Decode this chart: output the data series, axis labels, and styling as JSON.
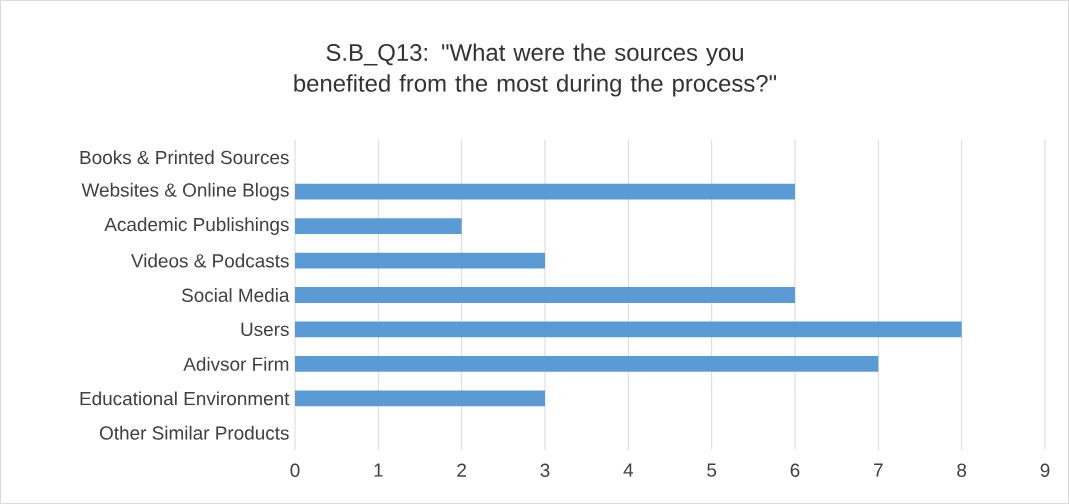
{
  "chart_data": {
    "type": "bar",
    "orientation": "horizontal",
    "title": "S.B_Q13: \"What were the sources you benefited from the most during the process?\"",
    "categories": [
      "Books & Printed Sources",
      "Websites & Online Blogs",
      "Academic Publishings",
      "Videos & Podcasts",
      "Social Media",
      "Users",
      "Adivsor Firm",
      "Educational Environment",
      "Other Similar Products"
    ],
    "values": [
      0,
      6,
      2,
      3,
      6,
      8,
      7,
      3,
      0
    ],
    "color": "#5b9bd5",
    "xlim": [
      0,
      9
    ],
    "xticks": [
      0,
      1,
      2,
      3,
      4,
      5,
      6,
      7,
      8,
      9
    ],
    "grid": "x"
  }
}
